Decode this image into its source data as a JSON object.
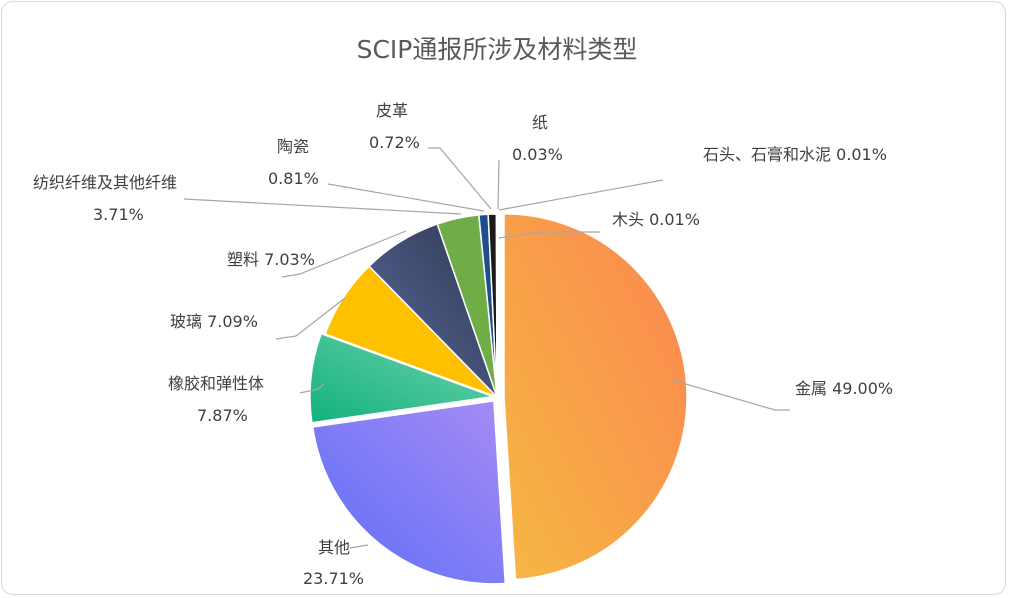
{
  "chart_data": {
    "type": "pie",
    "title": "SCIP通报所涉及材料类型",
    "slices": [
      {
        "name": "金属",
        "value": 49.0,
        "pct_text": "49.00%",
        "color_start": "#f6b843",
        "color_end": "#fb8550"
      },
      {
        "name": "其他",
        "value": 23.71,
        "pct_text": "23.71%",
        "color_start": "#5a6ef6",
        "color_end": "#a88bf5"
      },
      {
        "name": "橡胶和弹性体",
        "value": 7.87,
        "pct_text": "7.87%",
        "color_start": "#13b17d",
        "color_end": "#6fd4ac"
      },
      {
        "name": "玻璃",
        "value": 7.09,
        "pct_text": "7.09%",
        "color_start": "#ffc000",
        "color_end": "#ffc000"
      },
      {
        "name": "塑料",
        "value": 7.03,
        "pct_text": "7.03%",
        "color_start": "#5a6c9e",
        "color_end": "#2f3650"
      },
      {
        "name": "纺织纤维及其他纤维",
        "value": 3.71,
        "pct_text": "3.71%",
        "color_start": "#70ad47",
        "color_end": "#70ad47"
      },
      {
        "name": "陶瓷",
        "value": 0.81,
        "pct_text": "0.81%",
        "color_start": "#1f4e8c",
        "color_end": "#1f4e8c"
      },
      {
        "name": "皮革",
        "value": 0.72,
        "pct_text": "0.72%",
        "color_start": "#1a1a1a",
        "color_end": "#1a1a1a"
      },
      {
        "name": "纸",
        "value": 0.03,
        "pct_text": "0.03%",
        "color_start": "#4e79c5",
        "color_end": "#4e79c5"
      },
      {
        "name": "石头、石膏和水泥",
        "value": 0.01,
        "pct_text": "0.01%",
        "color_start": "#cccccc",
        "color_end": "#cccccc"
      },
      {
        "name": "木头",
        "value": 0.01,
        "pct_text": "0.01%",
        "color_start": "#a5a5a5",
        "color_end": "#a5a5a5"
      }
    ]
  }
}
